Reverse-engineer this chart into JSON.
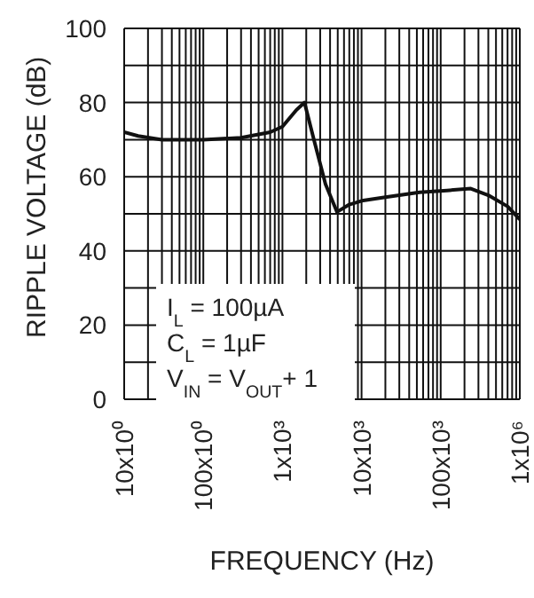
{
  "chart_data": {
    "type": "line",
    "xlabel": "FREQUENCY (Hz)",
    "ylabel": "RIPPLE VOLTAGE (dB)",
    "log": "x",
    "grid": true,
    "marker": "none",
    "line_style": "solid",
    "xlim": [
      10,
      1000000
    ],
    "ylim": [
      0,
      100
    ],
    "xticks": [
      {
        "value": 10,
        "label": "10x10⁰"
      },
      {
        "value": 20,
        "label": null
      },
      {
        "value": 30,
        "label": null
      },
      {
        "value": 40,
        "label": null
      },
      {
        "value": 50,
        "label": null
      },
      {
        "value": 60,
        "label": null
      },
      {
        "value": 70,
        "label": null
      },
      {
        "value": 80,
        "label": null
      },
      {
        "value": 90,
        "label": null
      },
      {
        "value": 100,
        "label": "100x10⁰"
      },
      {
        "value": 200,
        "label": null
      },
      {
        "value": 300,
        "label": null
      },
      {
        "value": 400,
        "label": null
      },
      {
        "value": 500,
        "label": null
      },
      {
        "value": 600,
        "label": null
      },
      {
        "value": 700,
        "label": null
      },
      {
        "value": 800,
        "label": null
      },
      {
        "value": 900,
        "label": null
      },
      {
        "value": 1000,
        "label": "1x10³"
      },
      {
        "value": 2000,
        "label": null
      },
      {
        "value": 3000,
        "label": null
      },
      {
        "value": 4000,
        "label": null
      },
      {
        "value": 5000,
        "label": null
      },
      {
        "value": 6000,
        "label": null
      },
      {
        "value": 7000,
        "label": null
      },
      {
        "value": 8000,
        "label": null
      },
      {
        "value": 9000,
        "label": null
      },
      {
        "value": 10000,
        "label": "10x10³"
      },
      {
        "value": 20000,
        "label": null
      },
      {
        "value": 30000,
        "label": null
      },
      {
        "value": 40000,
        "label": null
      },
      {
        "value": 50000,
        "label": null
      },
      {
        "value": 60000,
        "label": null
      },
      {
        "value": 70000,
        "label": null
      },
      {
        "value": 80000,
        "label": null
      },
      {
        "value": 90000,
        "label": null
      },
      {
        "value": 100000,
        "label": "100x10³"
      },
      {
        "value": 200000,
        "label": null
      },
      {
        "value": 300000,
        "label": null
      },
      {
        "value": 400000,
        "label": null
      },
      {
        "value": 500000,
        "label": null
      },
      {
        "value": 600000,
        "label": null
      },
      {
        "value": 700000,
        "label": null
      },
      {
        "value": 800000,
        "label": null
      },
      {
        "value": 900000,
        "label": null
      },
      {
        "value": 1000000,
        "label": "1x10⁶"
      }
    ],
    "yticks": [
      0,
      {
        "value": 10,
        "label": null
      },
      20,
      {
        "value": 30,
        "label": null
      },
      40,
      {
        "value": 50,
        "label": null
      },
      60,
      {
        "value": 70,
        "label": null
      },
      80,
      {
        "value": 90,
        "label": null
      },
      100
    ],
    "annotations": [
      "I$_{L}$ = 100µA",
      "C$_{L}$ = 1µF",
      "V$_{IN}$ = V$_{OUT}$+ 1"
    ],
    "series": [
      {
        "color": "#111111",
        "x": [
          10,
          15,
          30,
          100,
          300,
          700,
          1000,
          1500,
          1900,
          2500,
          3500,
          4900,
          7000,
          10500,
          20000,
          54000,
          120000,
          240000,
          400000,
          700000,
          1000000
        ],
        "values": [
          72,
          71,
          70,
          70,
          70.5,
          72,
          73.5,
          78,
          80,
          70,
          58,
          50.5,
          52.5,
          53.6,
          54.5,
          55.8,
          56.3,
          56.8,
          55,
          52,
          48.5
        ]
      }
    ]
  }
}
